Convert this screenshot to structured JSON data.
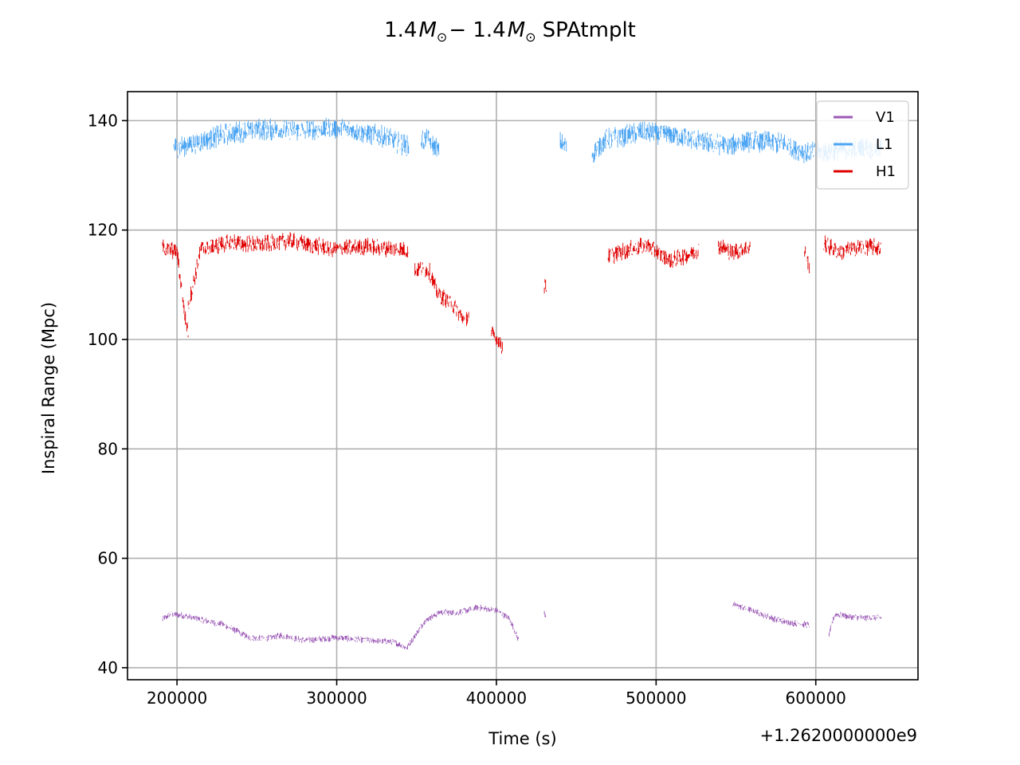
{
  "chart_data": {
    "type": "scatter",
    "title_prefix": "1.4",
    "title_mid": "− 1.4",
    "title_suffix": "SPAtmplt",
    "title_symbol": "M",
    "title_subscript": "⊙",
    "xlabel": "Time (s)",
    "ylabel": "Inspiral Range (Mpc)",
    "x_offset_label": "+1.2620000000e9",
    "x_ticks": [
      {
        "value": 200000,
        "label": "200000"
      },
      {
        "value": 300000,
        "label": "300000"
      },
      {
        "value": 400000,
        "label": "400000"
      },
      {
        "value": 500000,
        "label": "500000"
      },
      {
        "value": 600000,
        "label": "600000"
      }
    ],
    "y_ticks": [
      {
        "value": 40,
        "label": "40"
      },
      {
        "value": 60,
        "label": "60"
      },
      {
        "value": 80,
        "label": "80"
      },
      {
        "value": 100,
        "label": "100"
      },
      {
        "value": 120,
        "label": "120"
      },
      {
        "value": 140,
        "label": "140"
      }
    ],
    "xlim": [
      169000,
      664000
    ],
    "ylim": [
      37.8,
      145.3
    ],
    "grid": true,
    "legend_position": "top-right",
    "series": [
      {
        "name": "V1",
        "color": "#9b59b6",
        "segments": [
          {
            "start": 191000,
            "end": 216000,
            "points": [
              [
                191000,
                48.8
              ],
              [
                196000,
                49.8
              ],
              [
                203000,
                49.6
              ],
              [
                210000,
                49.1
              ],
              [
                216000,
                48.7
              ]
            ]
          },
          {
            "start": 216000,
            "end": 344000,
            "points": [
              [
                216000,
                48.7
              ],
              [
                230000,
                47.8
              ],
              [
                245000,
                45.5
              ],
              [
                255000,
                45.3
              ],
              [
                265000,
                45.9
              ],
              [
                280000,
                45.0
              ],
              [
                300000,
                45.5
              ],
              [
                320000,
                45.0
              ],
              [
                335000,
                44.8
              ],
              [
                344000,
                43.6
              ]
            ]
          },
          {
            "start": 344000,
            "end": 414000,
            "points": [
              [
                344000,
                43.6
              ],
              [
                355000,
                48.5
              ],
              [
                365000,
                50.2
              ],
              [
                375000,
                50.0
              ],
              [
                388000,
                51.0
              ],
              [
                400000,
                50.5
              ],
              [
                408000,
                49.0
              ],
              [
                414000,
                45.0
              ]
            ]
          },
          {
            "start": 430000,
            "end": 431000,
            "points": [
              [
                430000,
                50.0
              ],
              [
                431000,
                49.5
              ]
            ]
          },
          {
            "start": 548000,
            "end": 596000,
            "points": [
              [
                548000,
                51.6
              ],
              [
                560000,
                50.5
              ],
              [
                575000,
                48.8
              ],
              [
                585000,
                48.2
              ],
              [
                596000,
                47.8
              ]
            ]
          },
          {
            "start": 608000,
            "end": 641000,
            "points": [
              [
                608000,
                45.8
              ],
              [
                612000,
                49.8
              ],
              [
                620000,
                49.4
              ],
              [
                630000,
                49.1
              ],
              [
                641000,
                49.2
              ]
            ]
          }
        ]
      },
      {
        "name": "L1",
        "color": "#4ea6f3",
        "segments": [
          {
            "start": 198000,
            "end": 345000,
            "points": [
              [
                198000,
                135.0
              ],
              [
                212000,
                136.0
              ],
              [
                230000,
                137.5
              ],
              [
                250000,
                138.5
              ],
              [
                270000,
                138.2
              ],
              [
                290000,
                138.5
              ],
              [
                310000,
                138.3
              ],
              [
                330000,
                137.0
              ],
              [
                345000,
                135.2
              ]
            ]
          },
          {
            "start": 353000,
            "end": 364000,
            "points": [
              [
                353000,
                136.5
              ],
              [
                358000,
                136.3
              ],
              [
                364000,
                134.5
              ]
            ]
          },
          {
            "start": 440000,
            "end": 444000,
            "points": [
              [
                440000,
                136.0
              ],
              [
                444000,
                135.0
              ]
            ]
          },
          {
            "start": 460000,
            "end": 530000,
            "points": [
              [
                460000,
                134.0
              ],
              [
                468000,
                136.5
              ],
              [
                490000,
                137.8
              ],
              [
                510000,
                137.5
              ],
              [
                530000,
                136.0
              ]
            ]
          },
          {
            "start": 530000,
            "end": 641000,
            "points": [
              [
                530000,
                136.0
              ],
              [
                545000,
                135.5
              ],
              [
                560000,
                136.3
              ],
              [
                580000,
                135.8
              ],
              [
                595000,
                134.0
              ],
              [
                610000,
                134.5
              ],
              [
                625000,
                135.0
              ],
              [
                641000,
                135.0
              ]
            ]
          }
        ]
      },
      {
        "name": "H1",
        "color": "#e00000",
        "segments": [
          {
            "start": 191000,
            "end": 207000,
            "points": [
              [
                191000,
                116.8
              ],
              [
                200000,
                116.0
              ],
              [
                205000,
                104.0
              ],
              [
                207000,
                101.5
              ]
            ]
          },
          {
            "start": 207000,
            "end": 345000,
            "points": [
              [
                207000,
                106.0
              ],
              [
                215000,
                116.5
              ],
              [
                235000,
                117.8
              ],
              [
                250000,
                117.3
              ],
              [
                270000,
                118.0
              ],
              [
                300000,
                116.5
              ],
              [
                320000,
                117.0
              ],
              [
                340000,
                116.5
              ],
              [
                345000,
                116.0
              ]
            ]
          },
          {
            "start": 349000,
            "end": 383000,
            "points": [
              [
                349000,
                113.0
              ],
              [
                358000,
                112.5
              ],
              [
                363000,
                108.5
              ],
              [
                372000,
                106.5
              ],
              [
                380000,
                103.5
              ],
              [
                383000,
                104.5
              ]
            ]
          },
          {
            "start": 397000,
            "end": 404000,
            "points": [
              [
                397000,
                101.0
              ],
              [
                402000,
                99.5
              ],
              [
                404000,
                98.5
              ]
            ]
          },
          {
            "start": 430000,
            "end": 432000,
            "points": [
              [
                430000,
                110.0
              ],
              [
                432000,
                109.5
              ]
            ]
          },
          {
            "start": 470000,
            "end": 527000,
            "points": [
              [
                470000,
                115.0
              ],
              [
                480000,
                116.2
              ],
              [
                495000,
                117.3
              ],
              [
                500000,
                116.0
              ],
              [
                510000,
                114.5
              ],
              [
                520000,
                115.5
              ],
              [
                527000,
                116.5
              ]
            ]
          },
          {
            "start": 539000,
            "end": 559000,
            "points": [
              [
                539000,
                117.2
              ],
              [
                547000,
                116.0
              ],
              [
                559000,
                116.8
              ]
            ]
          },
          {
            "start": 593000,
            "end": 596000,
            "points": [
              [
                593000,
                116.0
              ],
              [
                596000,
                113.0
              ]
            ]
          },
          {
            "start": 605000,
            "end": 641000,
            "points": [
              [
                605000,
                117.5
              ],
              [
                615000,
                116.0
              ],
              [
                630000,
                117.0
              ],
              [
                641000,
                116.8
              ]
            ]
          }
        ]
      }
    ]
  }
}
